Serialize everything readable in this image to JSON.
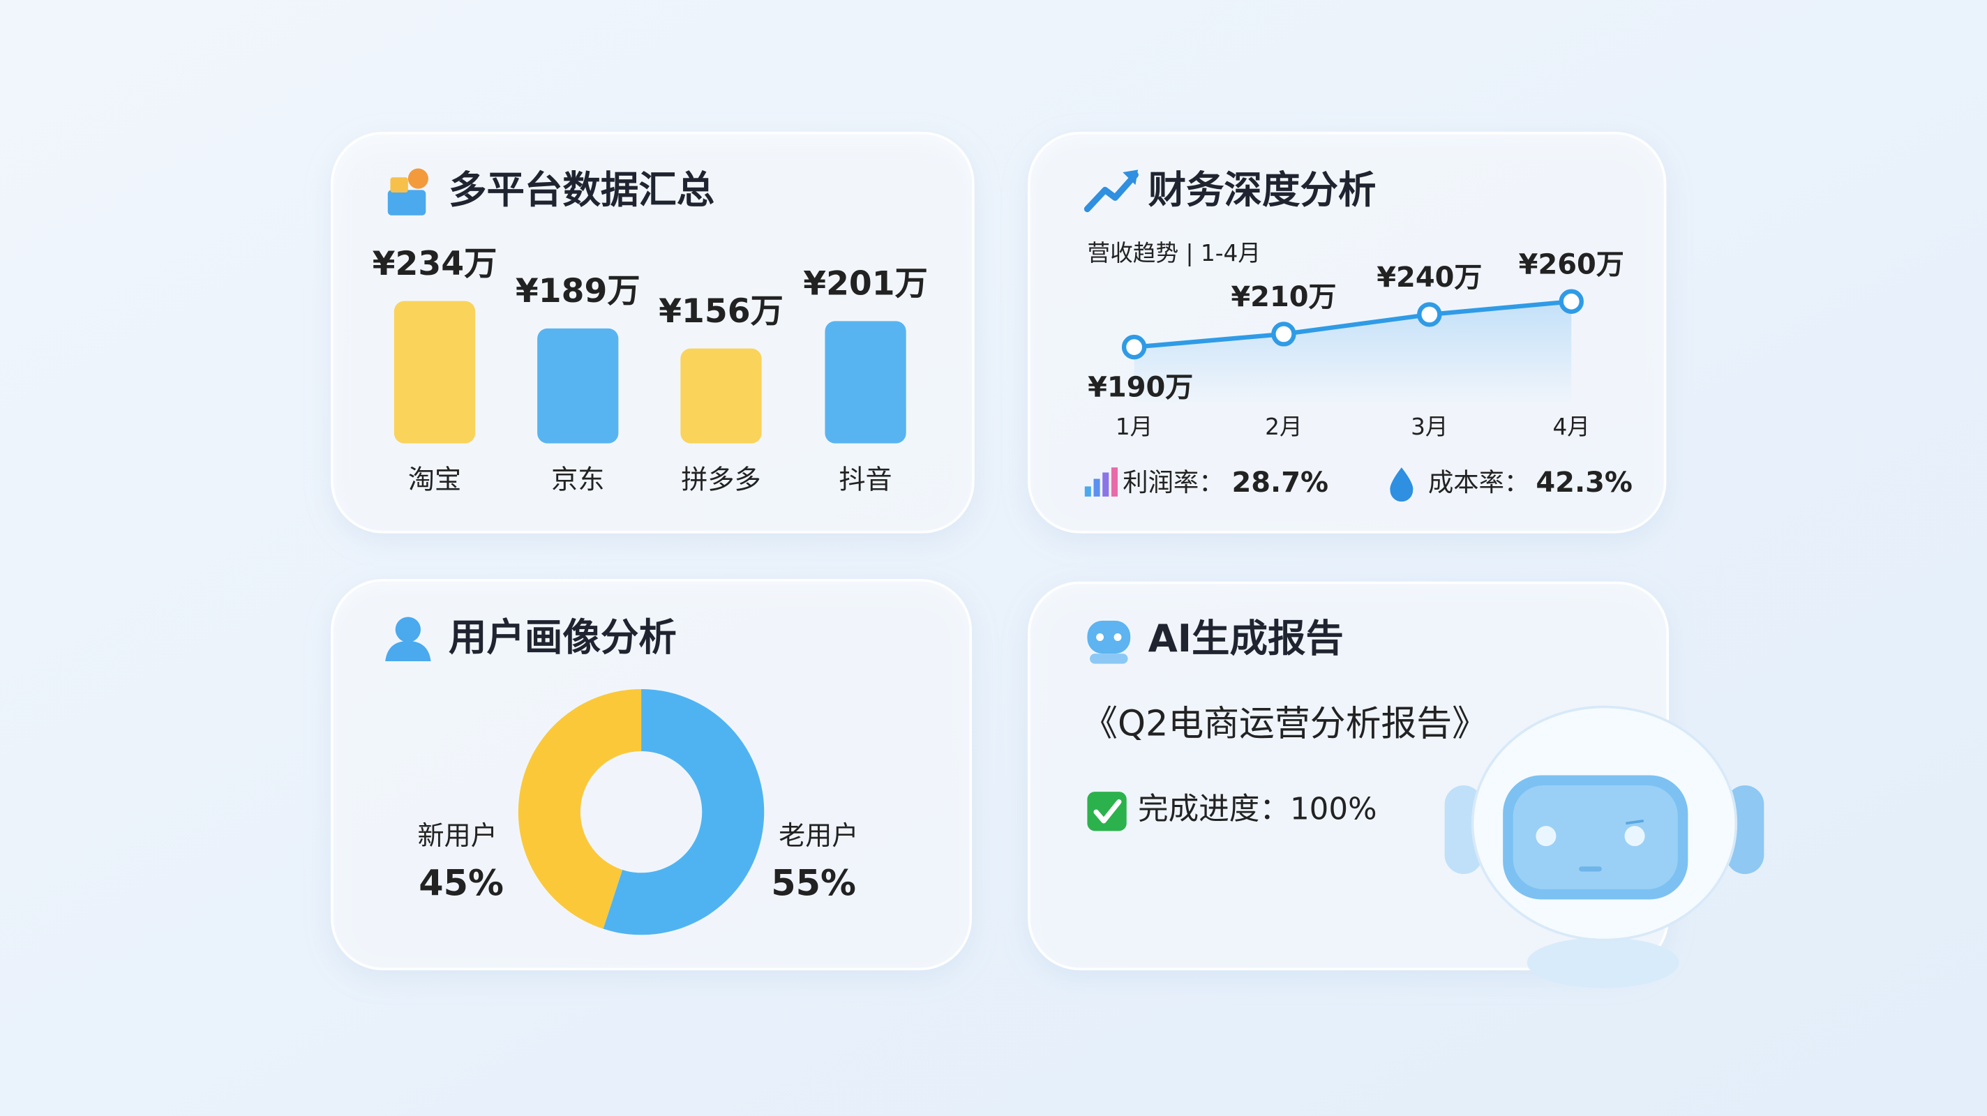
{
  "chart_data": [
    {
      "type": "bar",
      "title": "多平台数据汇总",
      "categories": [
        "淘宝",
        "京东",
        "拼多多",
        "抖音"
      ],
      "values": [
        234,
        189,
        156,
        201
      ],
      "value_labels": [
        "¥234万",
        "¥189万",
        "¥156万",
        "¥201万"
      ],
      "colors": [
        "#fbcf48",
        "#47adf0",
        "#fbcf48",
        "#47adf0"
      ],
      "label_colors": [
        "#f2a91e",
        "#1a7fd0",
        "#f2a91e",
        "#1a7fd0"
      ]
    },
    {
      "type": "line",
      "title": "财务深度分析",
      "subtitle": "营收趋势 | 1-4月",
      "categories": [
        "1月",
        "2月",
        "3月",
        "4月"
      ],
      "values": [
        190,
        210,
        240,
        260
      ],
      "value_labels": [
        "¥190万",
        "¥210万",
        "¥240万",
        "¥260万"
      ],
      "color": "#2f9be6"
    },
    {
      "type": "pie",
      "title": "用户画像分析",
      "categories": [
        "新用户",
        "老用户"
      ],
      "values": [
        45,
        55
      ],
      "value_labels": [
        "45%",
        "55%"
      ],
      "colors": [
        "#fbc83a",
        "#4fb3f2"
      ],
      "label_colors": [
        "#6b7280",
        "#1a7fd0"
      ]
    }
  ],
  "finance_metrics": [
    {
      "label": "利润率：",
      "value": "28.7%"
    },
    {
      "label": "成本率：",
      "value": "42.3%"
    }
  ],
  "ai_report": {
    "title": "AI生成报告",
    "report_name": "《Q2电商运营分析报告》",
    "progress": "完成进度：100%"
  }
}
